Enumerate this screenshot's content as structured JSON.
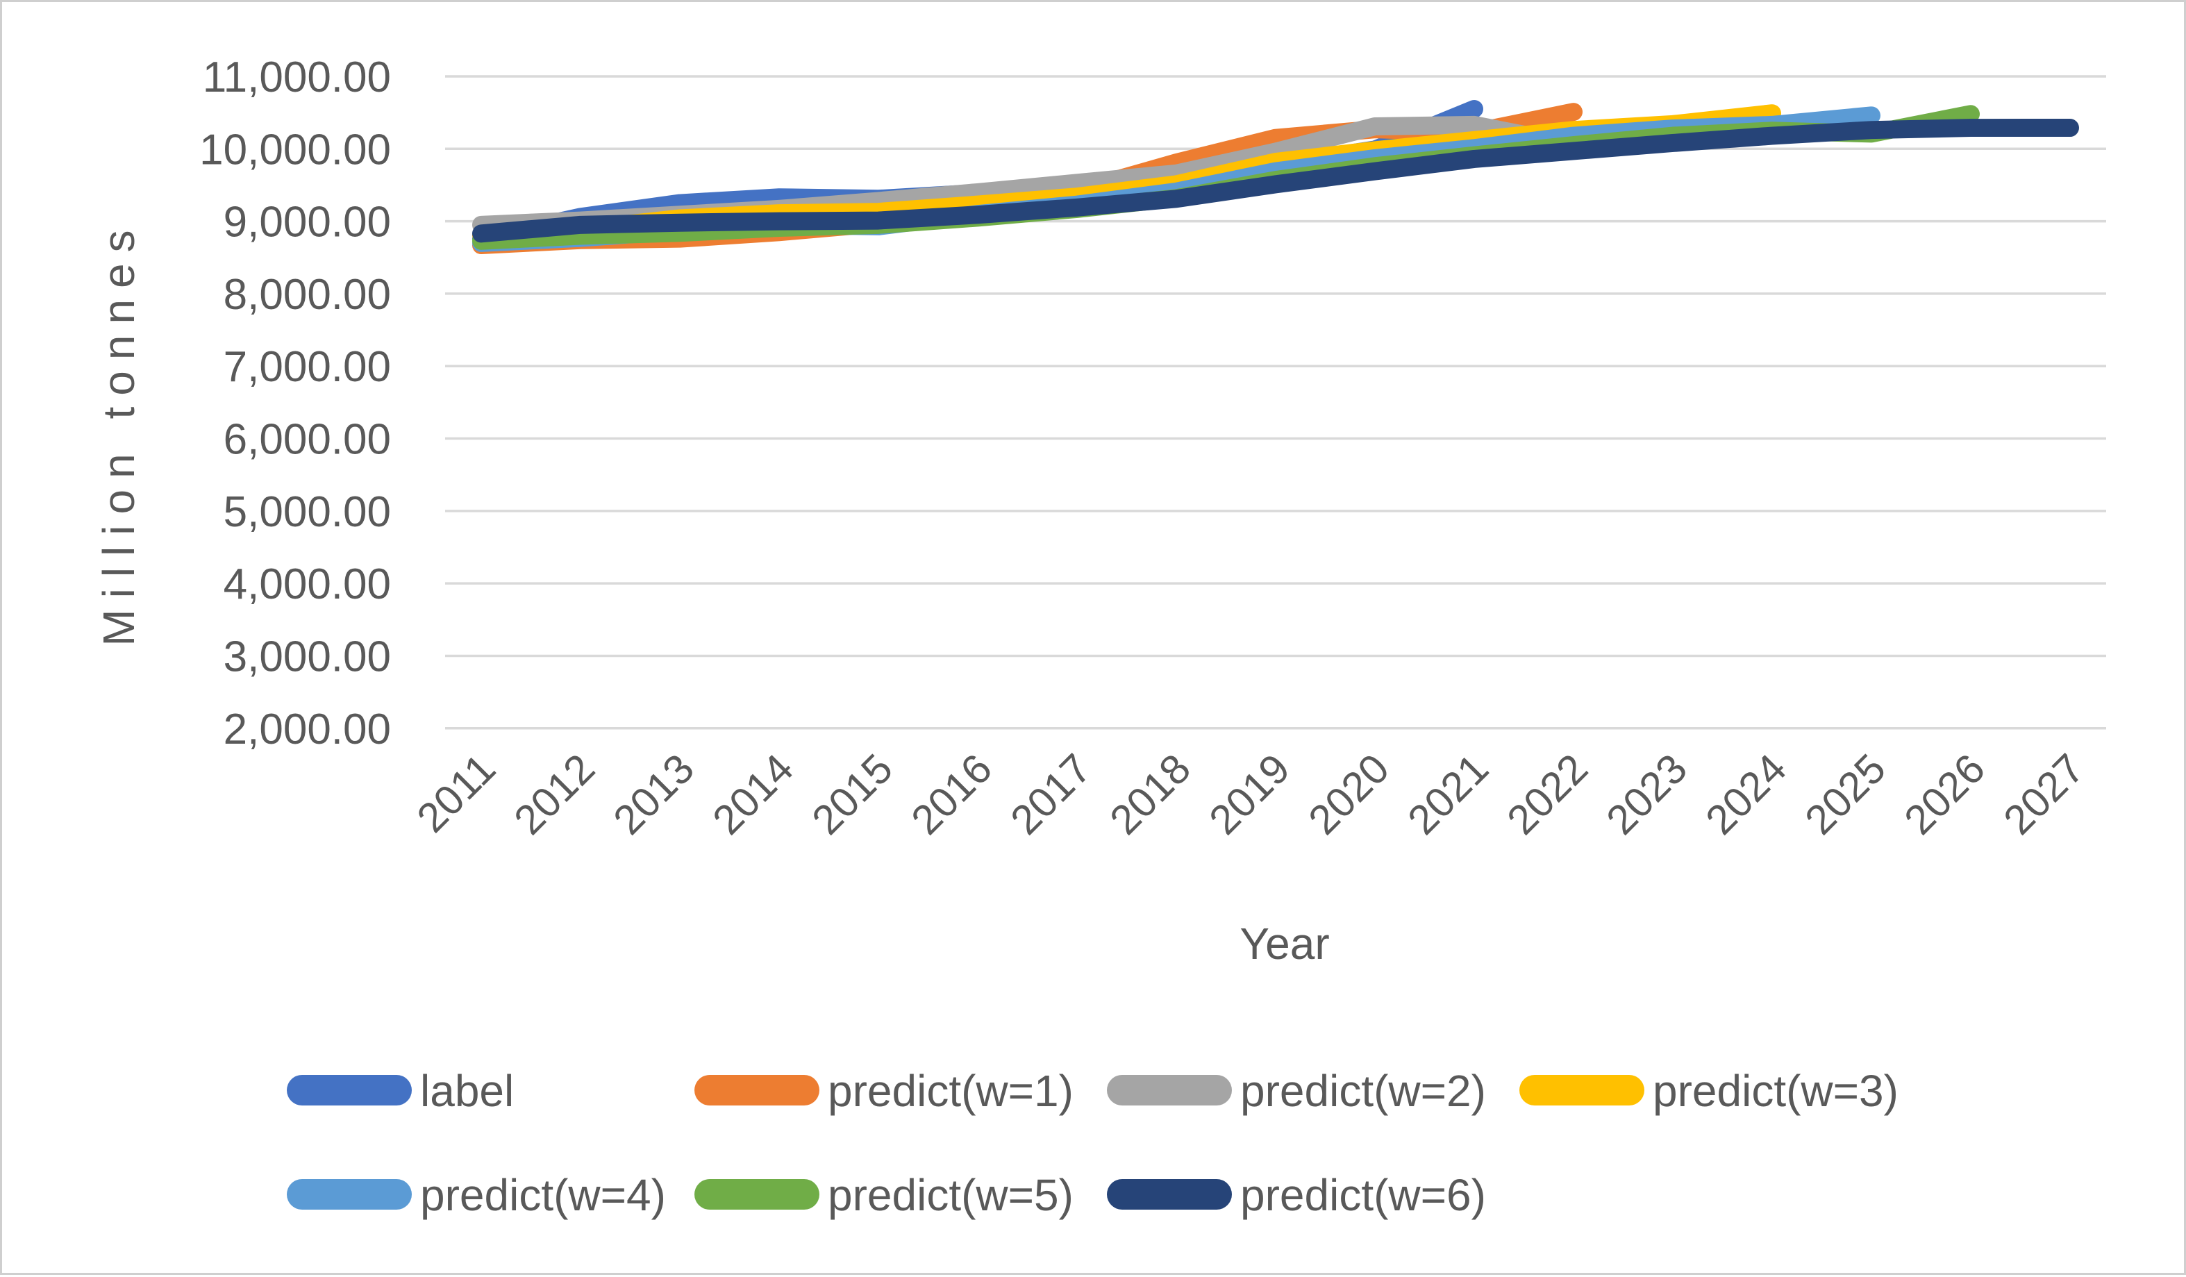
{
  "chart_data": {
    "type": "line",
    "title": "",
    "xlabel": "Year",
    "ylabel": "Million  tonnes",
    "categories": [
      "2011",
      "2012",
      "2013",
      "2014",
      "2015",
      "2016",
      "2017",
      "2018",
      "2019",
      "2020",
      "2021",
      "2022",
      "2023",
      "2024",
      "2025",
      "2026",
      "2027"
    ],
    "x_start_year": 2011,
    "ylim": [
      2000,
      11000
    ],
    "ytick_step": 1000,
    "yticks": [
      {
        "value": 11000,
        "label": "11,000.00"
      },
      {
        "value": 10000,
        "label": "10,000.00"
      },
      {
        "value": 9000,
        "label": "9,000.00"
      },
      {
        "value": 8000,
        "label": "8,000.00"
      },
      {
        "value": 7000,
        "label": "7,000.00"
      },
      {
        "value": 6000,
        "label": "6,000.00"
      },
      {
        "value": 5000,
        "label": "5,000.00"
      },
      {
        "value": 4000,
        "label": "4,000.00"
      },
      {
        "value": 3000,
        "label": "3,000.00"
      },
      {
        "value": 2000,
        "label": "2,000.00"
      }
    ],
    "grid": true,
    "legend_position": "bottom",
    "colors": {
      "grid": "#d9d9d9",
      "text": "#595959",
      "border": "#cfcfcf"
    },
    "series": [
      {
        "name": "label",
        "color": "#4472C4",
        "start_year": 2011,
        "values": [
          8760,
          9060,
          9250,
          9330,
          9310,
          9390,
          9490,
          9630,
          9780,
          9990,
          10550
        ]
      },
      {
        "name": "predict(w=1)",
        "color": "#ED7D31",
        "start_year": 2011,
        "values": [
          8670,
          8740,
          8760,
          8850,
          8970,
          9160,
          9420,
          9810,
          10150,
          10270,
          10230,
          10510
        ]
      },
      {
        "name": "predict(w=2)",
        "color": "#A5A5A5",
        "start_year": 2011,
        "values": [
          8950,
          9010,
          9090,
          9170,
          9280,
          9400,
          9530,
          9660,
          9960,
          10310,
          10330,
          10060,
          10110
        ]
      },
      {
        "name": "predict(w=3)",
        "color": "#FFC000",
        "start_year": 2011,
        "values": [
          8810,
          8890,
          9040,
          9110,
          9130,
          9230,
          9340,
          9510,
          9820,
          9980,
          10120,
          10260,
          10340,
          10490
        ]
      },
      {
        "name": "predict(w=4)",
        "color": "#5B9BD5",
        "start_year": 2011,
        "values": [
          8700,
          8770,
          8870,
          8950,
          8930,
          9100,
          9230,
          9410,
          9690,
          9870,
          10010,
          10180,
          10280,
          10330,
          10460
        ]
      },
      {
        "name": "predict(w=5)",
        "color": "#70AD47",
        "start_year": 2011,
        "values": [
          8730,
          8800,
          8840,
          8910,
          8950,
          9050,
          9170,
          9320,
          9570,
          9760,
          9910,
          10050,
          10180,
          10250,
          10210,
          10480
        ]
      },
      {
        "name": "predict(w=6)",
        "color": "#264478",
        "start_year": 2011,
        "values": [
          8830,
          8950,
          8980,
          9000,
          9010,
          9090,
          9190,
          9310,
          9510,
          9690,
          9860,
          9970,
          10080,
          10180,
          10260,
          10290,
          10290
        ]
      }
    ]
  }
}
